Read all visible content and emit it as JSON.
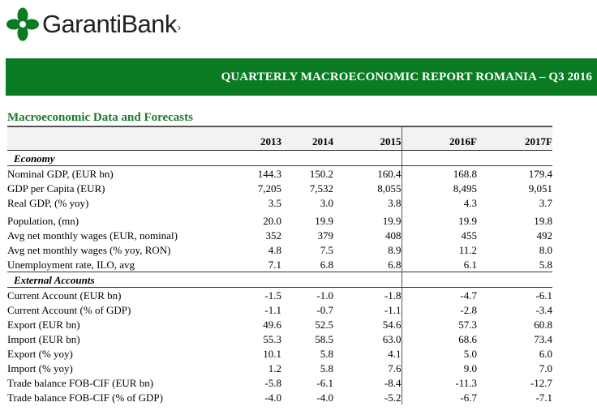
{
  "brand": {
    "name": "GarantiBank",
    "color": "#0a7a23"
  },
  "report_title": "QUARTERLY MACROECONOMIC REPORT ROMANIA – Q3 2016",
  "section_title": "Macroeconomic Data and  Forecasts",
  "table": {
    "years": [
      "2013",
      "2014",
      "2015"
    ],
    "forecasts": [
      "2016F",
      "2017F"
    ],
    "sections": [
      {
        "name": "Economy",
        "rows": [
          {
            "label": "Nominal GDP, (EUR bn)",
            "values": [
              "144.3",
              "150.2",
              "160.4",
              "168.8",
              "179.4"
            ]
          },
          {
            "label": "GDP per Capita (EUR)",
            "values": [
              "7,205",
              "7,532",
              "8,055",
              "8,495",
              "9,051"
            ]
          },
          {
            "label": "Real GDP, (% yoy)",
            "values": [
              "3.5",
              "3.0",
              "3.8",
              "4.3",
              "3.7"
            ]
          },
          {
            "label": "Population, (mn)",
            "values": [
              "20.0",
              "19.9",
              "19.9",
              "19.9",
              "19.8"
            ]
          },
          {
            "label": "Avg net monthly wages (EUR, nominal)",
            "values": [
              "352",
              "379",
              "408",
              "455",
              "492"
            ]
          },
          {
            "label": "Avg net monthly wages (% yoy, RON)",
            "values": [
              "4.8",
              "7.5",
              "8.9",
              "11.2",
              "8.0"
            ]
          },
          {
            "label": "Unemployment rate, ILO, avg",
            "values": [
              "7.1",
              "6.8",
              "6.8",
              "6.1",
              "5.8"
            ]
          }
        ]
      },
      {
        "name": "External Accounts",
        "rows": [
          {
            "label": "Current Account (EUR bn)",
            "values": [
              "-1.5",
              "-1.0",
              "-1.8",
              "-4.7",
              "-6.1"
            ]
          },
          {
            "label": "Current Account (% of GDP)",
            "values": [
              "-1.1",
              "-0.7",
              "-1.1",
              "-2.8",
              "-3.4"
            ]
          },
          {
            "label": "Export (EUR bn)",
            "values": [
              "49.6",
              "52.5",
              "54.6",
              "57.3",
              "60.8"
            ]
          },
          {
            "label": "Import (EUR bn)",
            "values": [
              "55.3",
              "58.5",
              "63.0",
              "68.6",
              "73.4"
            ]
          },
          {
            "label": "Export (% yoy)",
            "values": [
              "10.1",
              "5.8",
              "4.1",
              "5.0",
              "6.0"
            ]
          },
          {
            "label": "Import (% yoy)",
            "values": [
              "1.2",
              "5.8",
              "7.6",
              "9.0",
              "7.0"
            ]
          },
          {
            "label": "Trade balance FOB-CIF (EUR bn)",
            "values": [
              "-5.8",
              "-6.1",
              "-8.4",
              "-11.3",
              "-12.7"
            ]
          },
          {
            "label": "Trade balance FOB-CIF (% of GDP)",
            "values": [
              "-4.0",
              "-4.0",
              "-5.2",
              "-6.7",
              "-7.1"
            ]
          }
        ]
      }
    ]
  }
}
